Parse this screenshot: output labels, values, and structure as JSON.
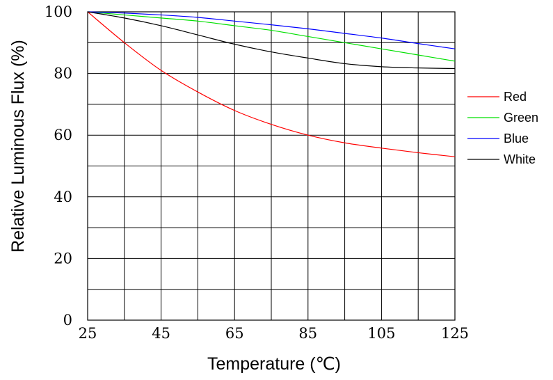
{
  "chart_data": {
    "type": "line",
    "xlabel": "Temperature (℃)",
    "ylabel": "Relative Luminous Flux  (%)",
    "xlim": [
      25,
      125
    ],
    "ylim": [
      0,
      100
    ],
    "x_ticks": [
      "25",
      "45",
      "65",
      "85",
      "105",
      "125"
    ],
    "y_ticks": [
      "0",
      "20",
      "40",
      "60",
      "80",
      "100"
    ],
    "grid": true,
    "legend_position": "right",
    "series": [
      {
        "name": "Red",
        "color": "#ff0000",
        "x": [
          25,
          35,
          45,
          55,
          65,
          75,
          85,
          95,
          105,
          115,
          125
        ],
        "y": [
          100,
          90,
          81,
          74,
          68,
          63.5,
          60,
          57.5,
          55.8,
          54.3,
          53
        ]
      },
      {
        "name": "Green",
        "color": "#00e000",
        "x": [
          25,
          35,
          45,
          55,
          65,
          75,
          85,
          95,
          105,
          115,
          125
        ],
        "y": [
          100,
          99,
          98,
          97,
          95.5,
          94,
          92,
          90,
          88,
          86,
          84
        ]
      },
      {
        "name": "Blue",
        "color": "#0000ff",
        "x": [
          25,
          35,
          45,
          55,
          65,
          75,
          85,
          95,
          105,
          115,
          125
        ],
        "y": [
          100,
          99.6,
          99,
          98.2,
          97,
          95.8,
          94.5,
          93,
          91.5,
          89.7,
          88
        ]
      },
      {
        "name": "White",
        "color": "#000000",
        "x": [
          25,
          35,
          45,
          55,
          65,
          75,
          85,
          95,
          105,
          115,
          125
        ],
        "y": [
          100,
          98,
          95.5,
          92.5,
          89.5,
          87,
          85,
          83.2,
          82.2,
          81.8,
          81.6
        ]
      }
    ]
  }
}
